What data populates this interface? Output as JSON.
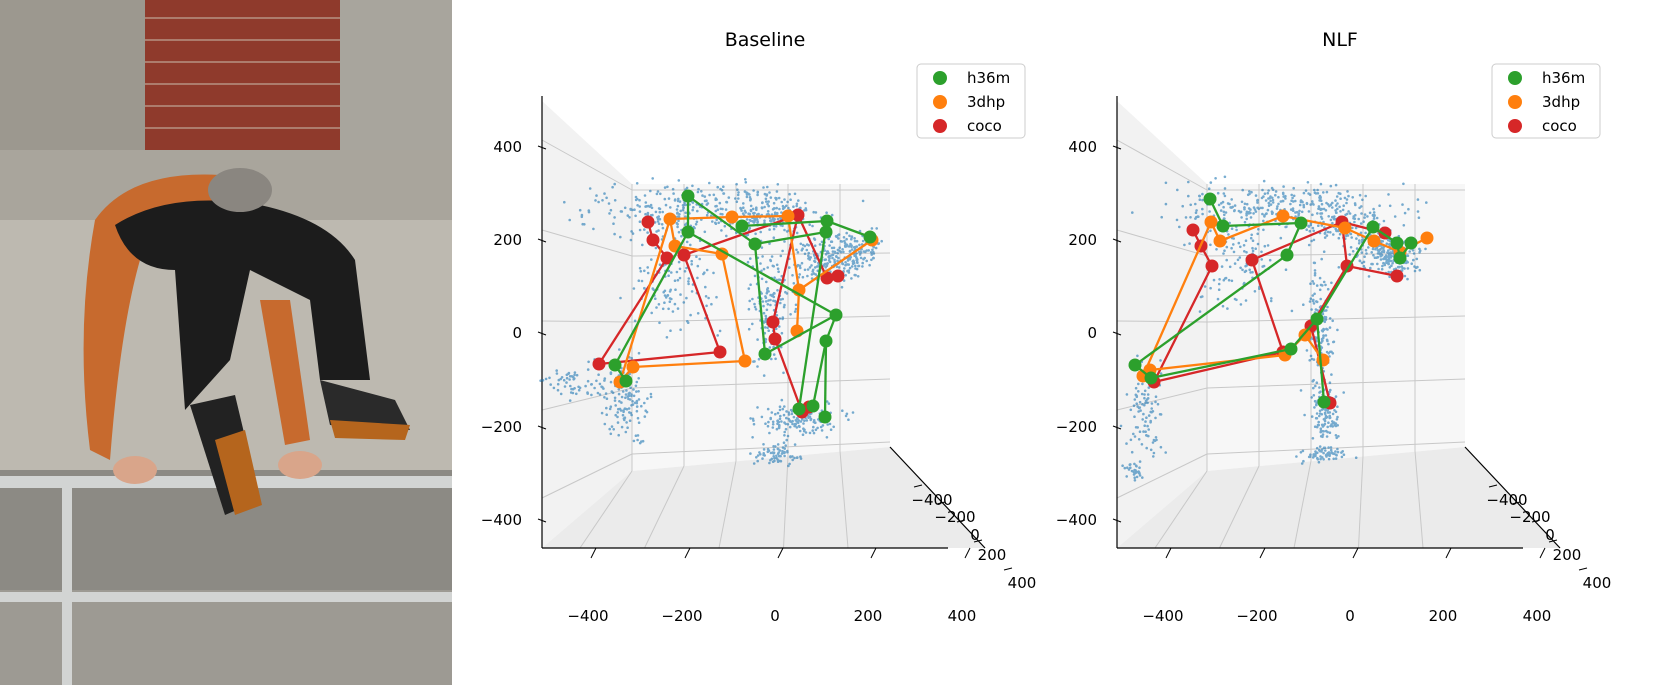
{
  "photo": {
    "description_icon": "parkour-jumper-photo"
  },
  "colors": {
    "h36m": "#2ca02c",
    "3dhp": "#ff7f0e",
    "coco": "#d62728",
    "cloud": "#1f77b4",
    "pane": "#f2f2f2",
    "grid": "#c8c8c8"
  },
  "chart_data": [
    {
      "type": "scatter",
      "title": "Baseline",
      "legend": {
        "placement": "top-right",
        "entries": [
          "h36m",
          "3dhp",
          "coco"
        ]
      },
      "axes": {
        "x_ticks": [
          "−400",
          "−200",
          "0",
          "200",
          "400"
        ],
        "y_ticks": [
          "−400",
          "−200",
          "0",
          "200",
          "400"
        ],
        "z_ticks": [
          "400",
          "200",
          "0",
          "−200",
          "−400"
        ],
        "xlim": [
          -500,
          500
        ],
        "ylim": [
          -500,
          500
        ],
        "zlim": [
          -500,
          500
        ]
      },
      "grid": true
    },
    {
      "type": "scatter",
      "title": "NLF",
      "legend": {
        "placement": "top-right",
        "entries": [
          "h36m",
          "3dhp",
          "coco"
        ]
      },
      "axes": {
        "x_ticks": [
          "−400",
          "−200",
          "0",
          "200",
          "400"
        ],
        "y_ticks": [
          "−400",
          "−200",
          "0",
          "200",
          "400"
        ],
        "z_ticks": [
          "400",
          "200",
          "0",
          "−200",
          "−400"
        ],
        "xlim": [
          -500,
          500
        ],
        "ylim": [
          -500,
          500
        ],
        "zlim": [
          -500,
          500
        ]
      },
      "grid": true
    }
  ]
}
